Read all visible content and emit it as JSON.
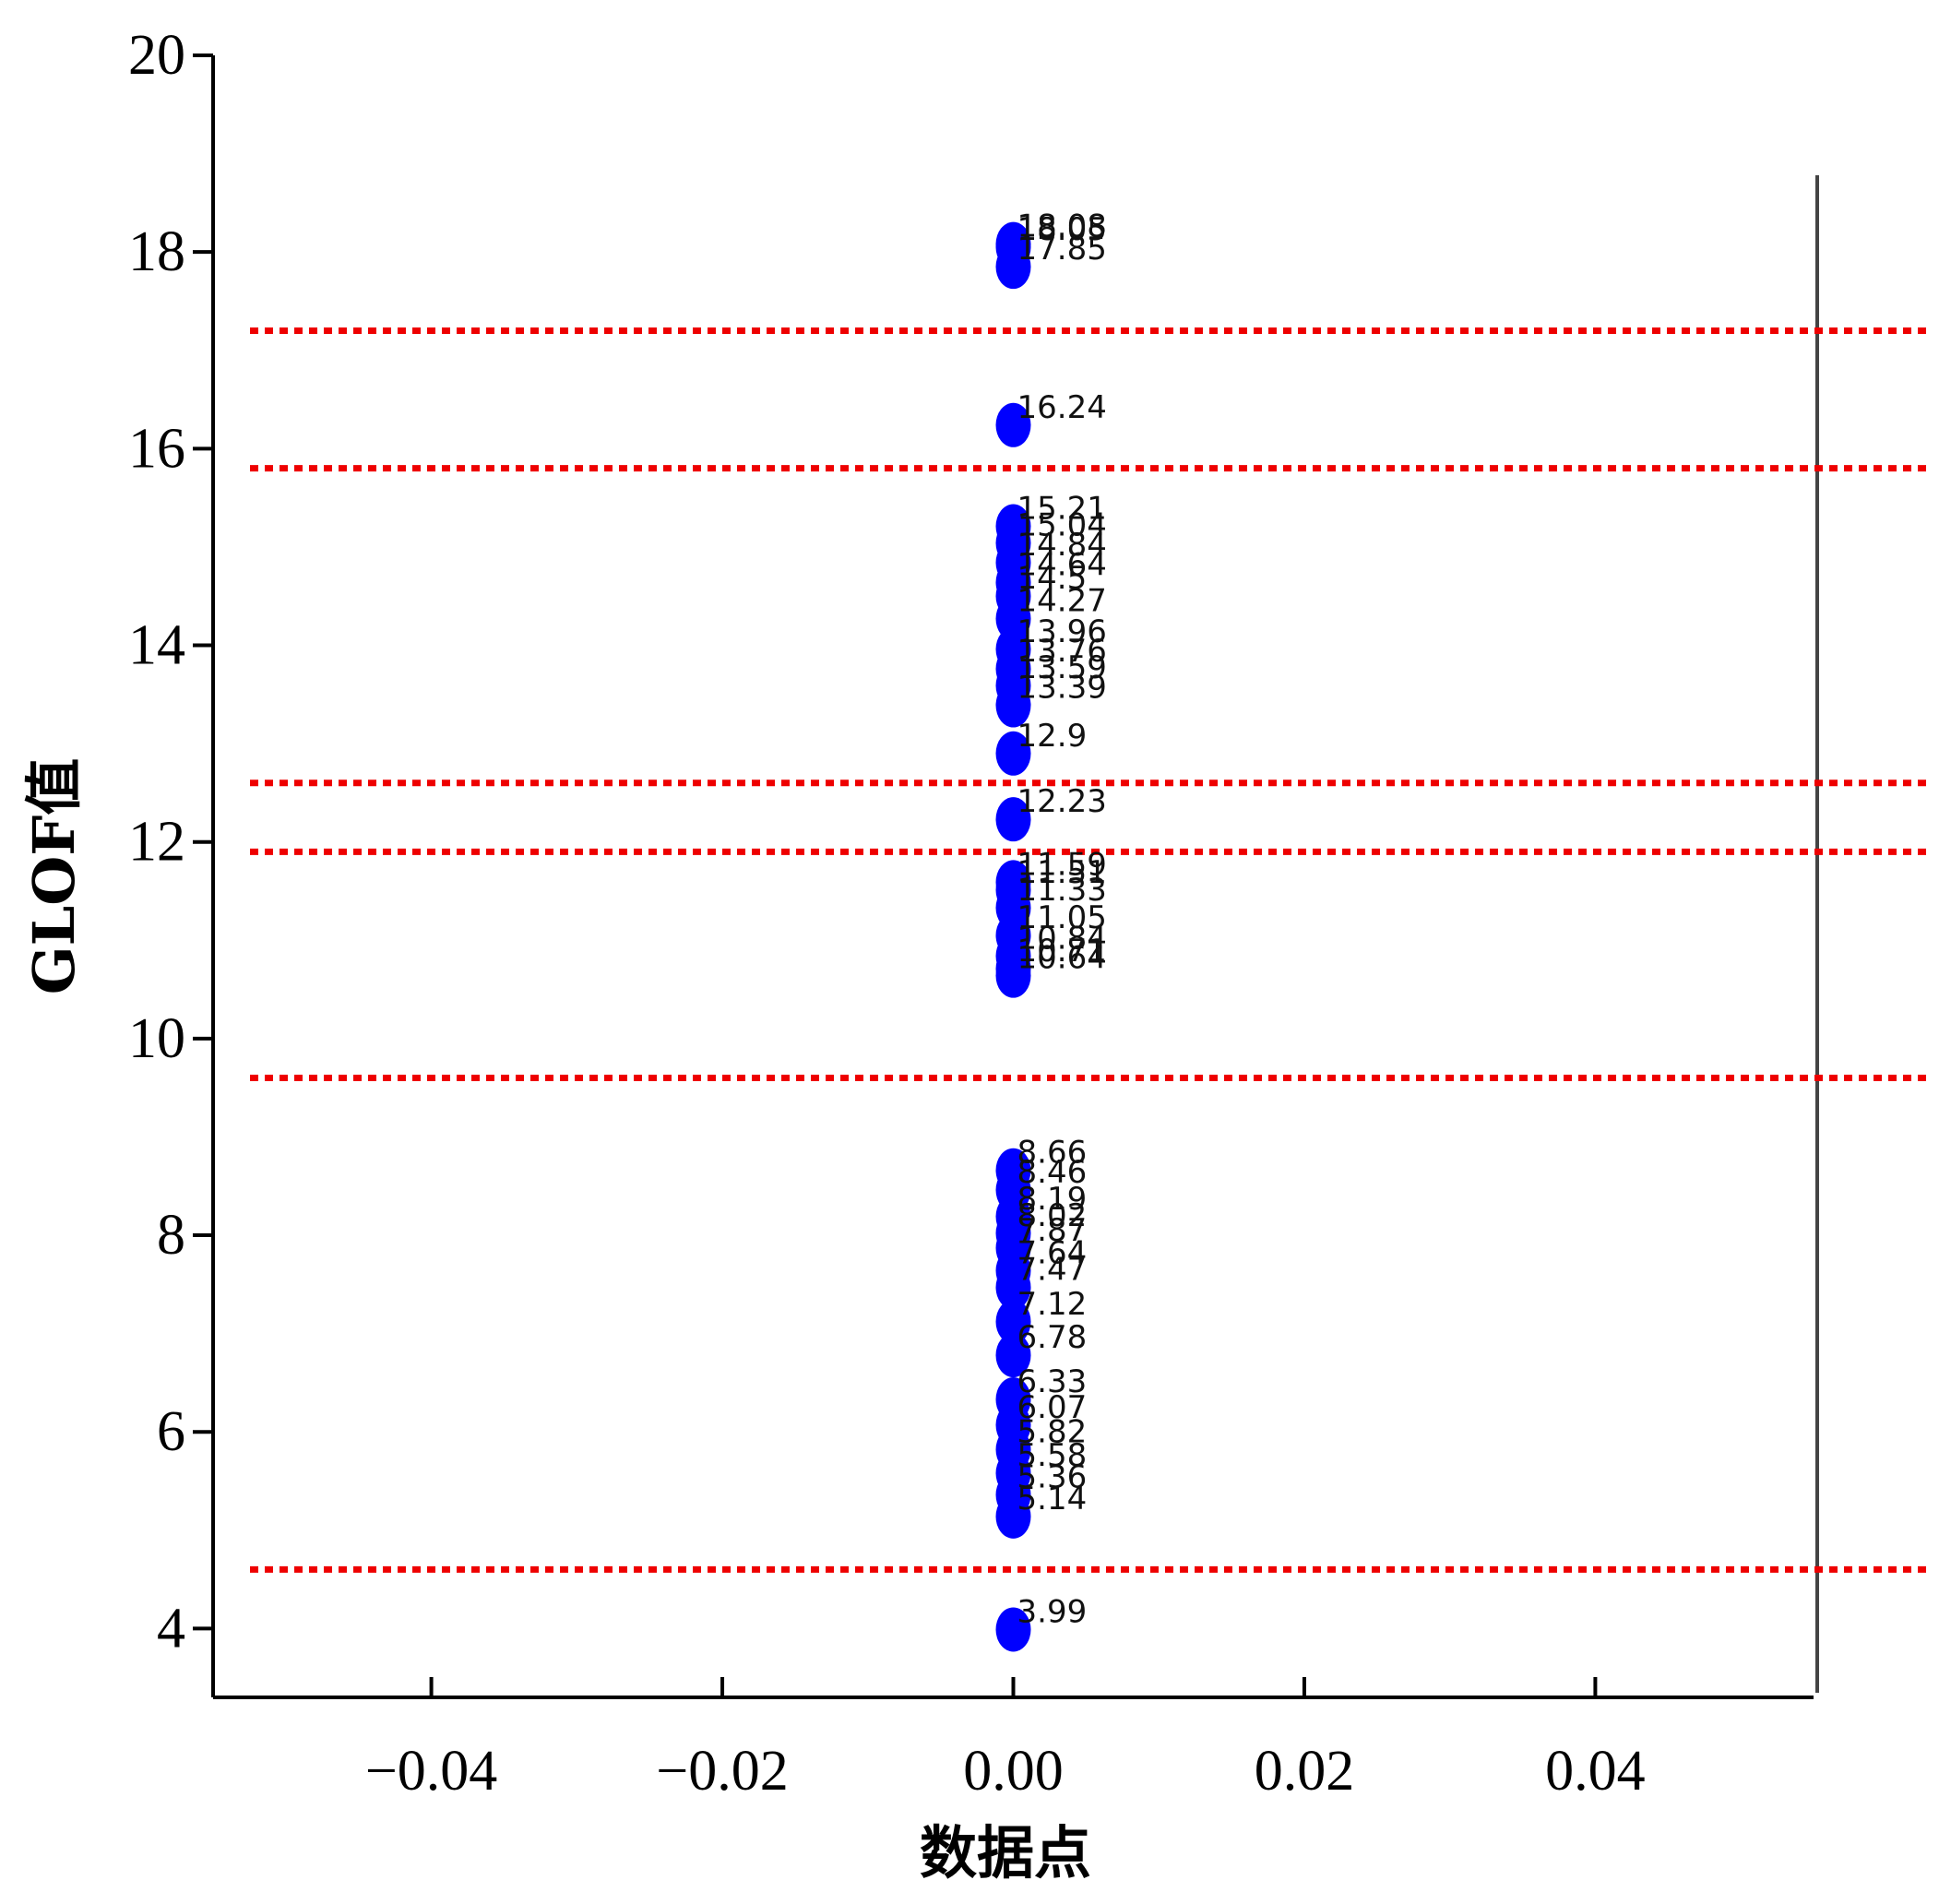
{
  "chart_data": {
    "type": "scatter",
    "xlabel": "数据点",
    "ylabel": "GLOF值",
    "xlim": [
      -0.055,
      0.055
    ],
    "xticks": [
      {
        "value": -0.04,
        "label": "−0.04"
      },
      {
        "value": -0.02,
        "label": "−0.02"
      },
      {
        "value": 0,
        "label": "0.00"
      },
      0.02,
      0.04
    ],
    "ylim": [
      3.3,
      20
    ],
    "yticks": [
      4,
      6,
      8,
      10,
      12,
      14,
      16,
      18,
      20
    ],
    "hlines": [
      17.2,
      15.8,
      12.6,
      11.9,
      9.6,
      4.6
    ],
    "hline_color": "#ee0000",
    "series": [
      {
        "color": "#0000ff",
        "x": [
          0,
          0,
          0,
          0,
          0,
          0,
          0,
          0,
          0,
          0,
          0,
          0,
          0,
          0,
          0,
          0,
          0,
          0,
          0,
          0,
          0,
          0,
          0,
          0,
          0,
          0,
          0,
          0,
          0,
          0,
          0,
          0,
          0,
          0,
          0,
          0,
          0,
          0,
          0
        ],
        "values": [
          18.08,
          18.05,
          17.85,
          16.24,
          15.21,
          15.04,
          14.84,
          14.64,
          14.5,
          14.27,
          13.96,
          13.76,
          13.59,
          13.39,
          12.9,
          12.23,
          11.59,
          11.51,
          11.33,
          11.05,
          10.84,
          10.71,
          10.64,
          8.66,
          8.46,
          8.19,
          8.02,
          7.87,
          7.64,
          7.47,
          7.12,
          6.78,
          6.33,
          6.07,
          5.82,
          5.58,
          5.36,
          5.14,
          3.99
        ]
      }
    ]
  }
}
